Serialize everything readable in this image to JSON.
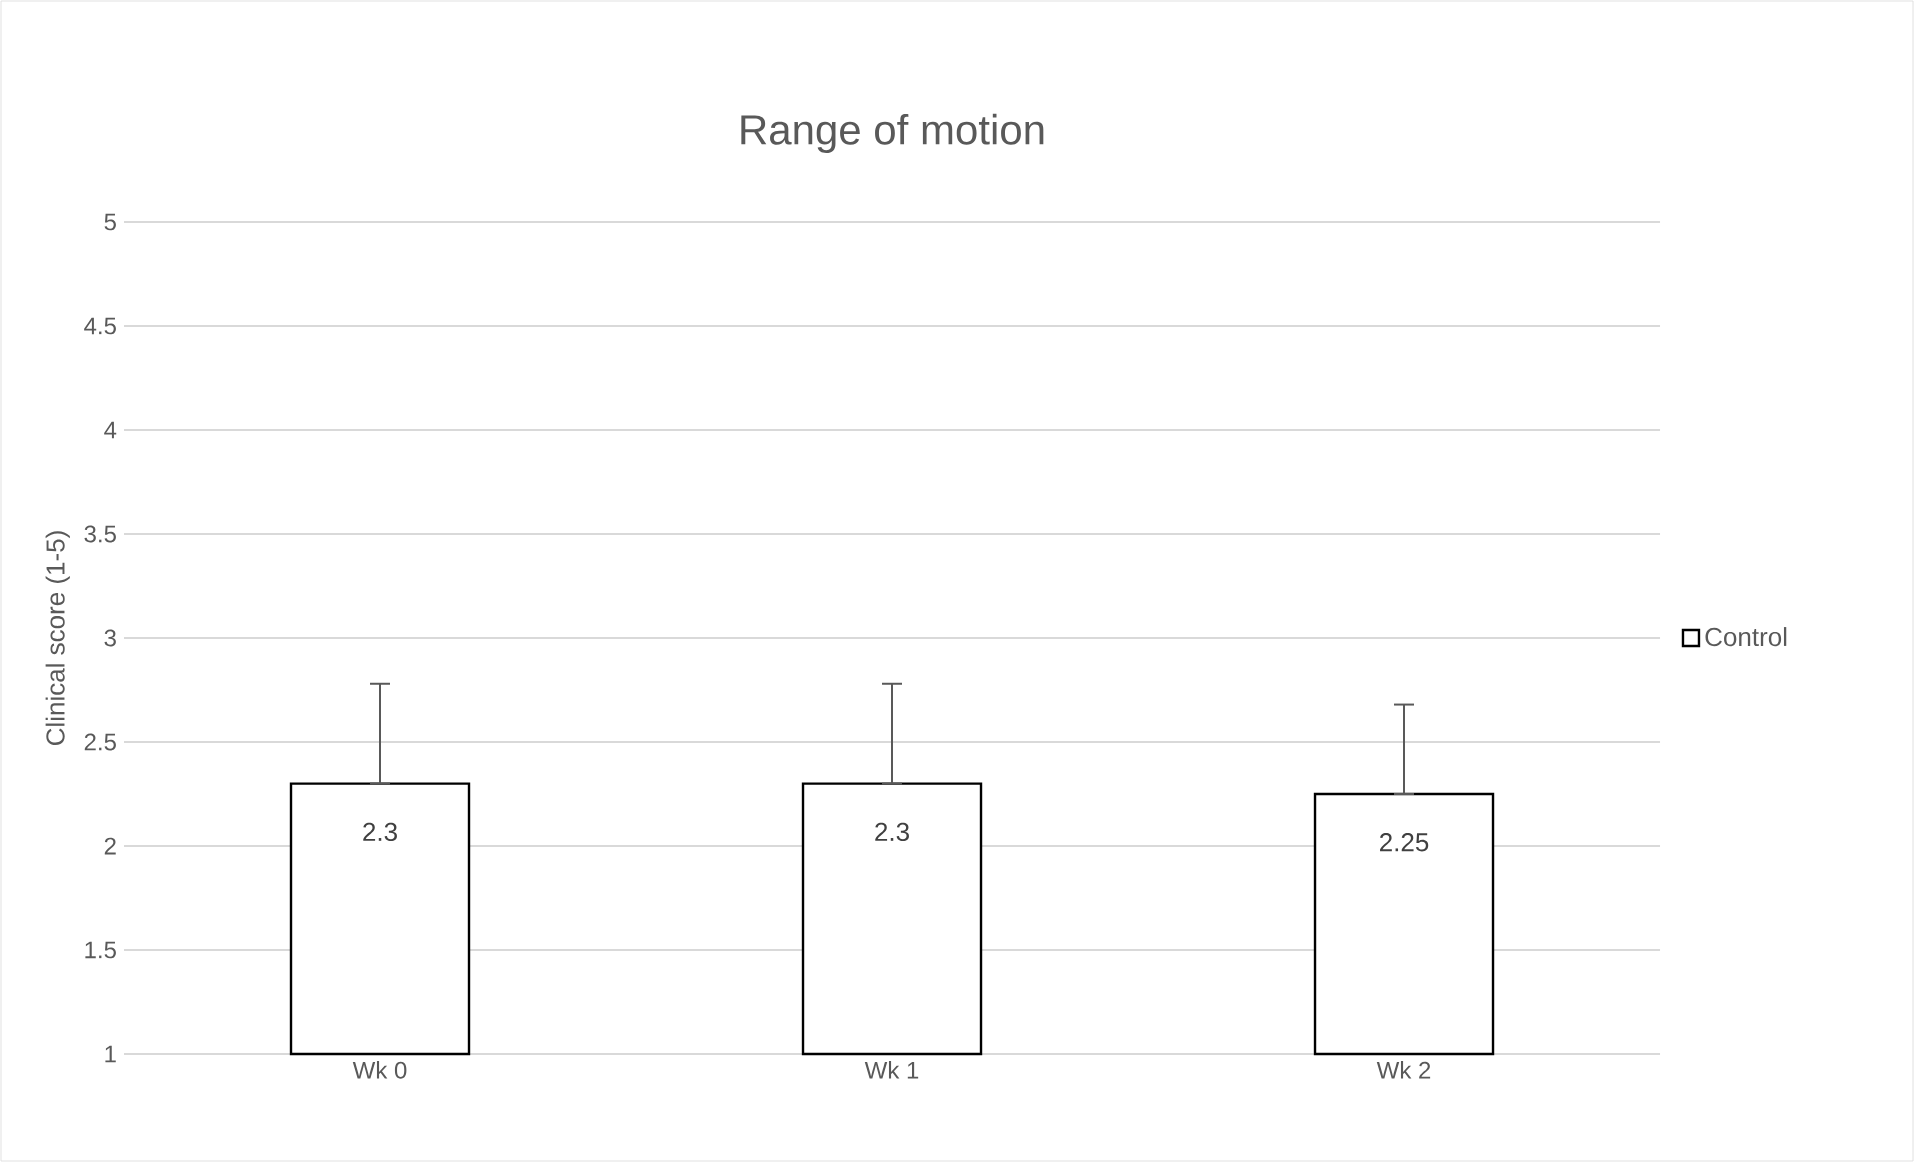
{
  "chart_data": {
    "type": "bar",
    "title": "Range of motion",
    "ylabel": "Clinical score (1-5)",
    "categories": [
      "Wk 0",
      "Wk 1",
      "Wk 2"
    ],
    "series": [
      {
        "name": "Control",
        "color": "#ffffff",
        "values": [
          2.3,
          2.3,
          2.25
        ],
        "errors": [
          [
            2.3,
            2.78
          ],
          [
            2.3,
            2.78
          ],
          [
            2.25,
            2.68
          ]
        ]
      }
    ],
    "ylim": [
      1,
      5
    ],
    "yticks": [
      1,
      1.5,
      2,
      2.5,
      3,
      3.5,
      4,
      4.5,
      5
    ],
    "grid": "y",
    "legend": "right",
    "data_labels": true
  }
}
